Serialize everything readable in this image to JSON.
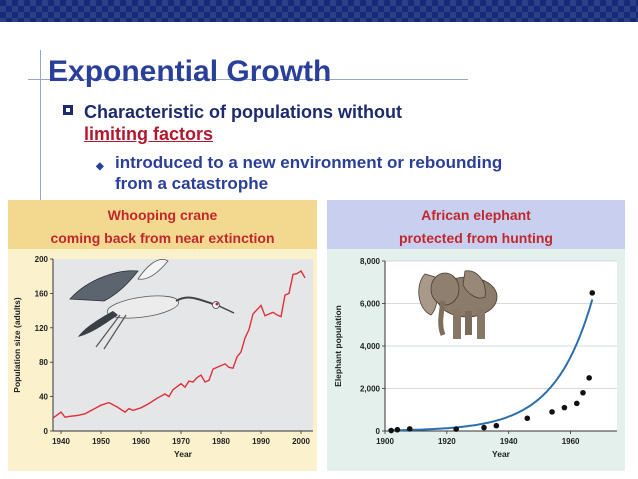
{
  "slide": {
    "title": "Exponential Growth",
    "bullet1_line1": "Characteristic of populations without",
    "bullet1_line2": "limiting factors",
    "bullet2_line1": "introduced to a new environment or rebounding",
    "bullet2_line2": "from a catastrophe"
  },
  "left_panel": {
    "heading": "Whooping crane",
    "subheading": "coming back from near extinction",
    "image": "crane-in-flight"
  },
  "right_panel": {
    "heading": "African elephant",
    "subheading": "protected from hunting",
    "image": "elephant"
  },
  "colors": {
    "title": "#2a3f9a",
    "accent_red": "#b3172d",
    "crane_line": "#e0303a",
    "elephant_line": "#2a6fb0"
  },
  "chart_data": [
    {
      "type": "line",
      "xlabel": "Year",
      "ylabel": "Population size (adults)",
      "xlim": [
        1938,
        2003
      ],
      "ylim": [
        0,
        200
      ],
      "xticks": [
        "1940",
        "1950",
        "1960",
        "1970",
        "1980",
        "1990",
        "2000"
      ],
      "yticks": [
        "0",
        "40",
        "80",
        "120",
        "160",
        "200"
      ],
      "x": [
        1938,
        1940,
        1941,
        1942,
        1944,
        1946,
        1948,
        1950,
        1952,
        1954,
        1956,
        1957,
        1958,
        1960,
        1962,
        1964,
        1966,
        1967,
        1968,
        1970,
        1971,
        1972,
        1973,
        1974,
        1975,
        1976,
        1977,
        1978,
        1979,
        1980,
        1981,
        1982,
        1983,
        1984,
        1985,
        1986,
        1987,
        1988,
        1989,
        1990,
        1991,
        1992,
        1993,
        1994,
        1995,
        1996,
        1997,
        1998,
        1999,
        2000,
        2001
      ],
      "y": [
        15,
        22,
        16,
        17,
        18,
        20,
        25,
        30,
        33,
        28,
        22,
        26,
        24,
        27,
        32,
        38,
        43,
        40,
        48,
        55,
        51,
        58,
        57,
        62,
        65,
        57,
        59,
        72,
        74,
        76,
        78,
        74,
        73,
        86,
        92,
        108,
        118,
        136,
        141,
        146,
        134,
        136,
        138,
        135,
        133,
        158,
        160,
        182,
        183,
        186,
        178
      ]
    },
    {
      "type": "scatter",
      "xlabel": "Year",
      "ylabel": "Elephant population",
      "xlim": [
        1900,
        1975
      ],
      "ylim": [
        0,
        8000
      ],
      "xticks": [
        "1900",
        "1920",
        "1940",
        "1960"
      ],
      "yticks": [
        "0",
        "2,000",
        "4,000",
        "6,000",
        "8,000"
      ],
      "x": [
        1902,
        1904,
        1908,
        1923,
        1932,
        1936,
        1946,
        1954,
        1958,
        1962,
        1964,
        1966,
        1967
      ],
      "y": [
        20,
        60,
        100,
        90,
        160,
        250,
        600,
        900,
        1100,
        1300,
        1800,
        2500,
        6500
      ]
    }
  ]
}
